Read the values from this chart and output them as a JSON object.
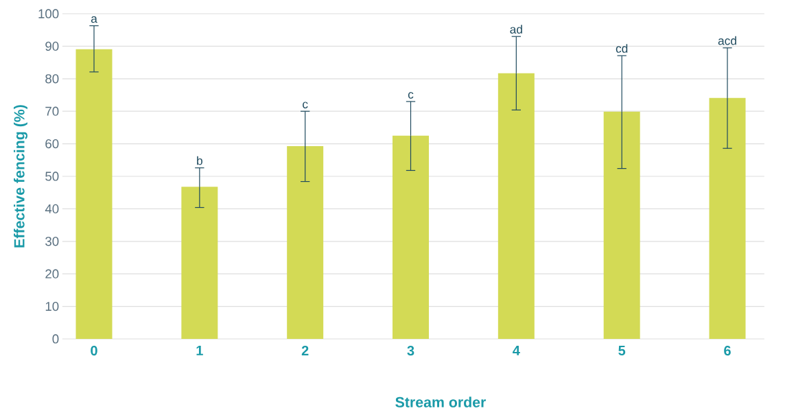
{
  "chart_data": {
    "type": "bar",
    "xlabel": "Stream order",
    "ylabel": "Effective fencing (%)",
    "categories": [
      "0",
      "1",
      "2",
      "3",
      "4",
      "5",
      "6"
    ],
    "values": [
      89.1,
      46.8,
      59.3,
      62.5,
      81.7,
      69.9,
      74.1
    ],
    "errors": [
      [
        82.1,
        96.3
      ],
      [
        40.4,
        52.6
      ],
      [
        48.4,
        70.0
      ],
      [
        51.8,
        73.0
      ],
      [
        70.4,
        93.0
      ],
      [
        52.4,
        87.1
      ],
      [
        58.6,
        89.5
      ]
    ],
    "color": "#d3da55",
    "ylim": [
      0,
      100
    ],
    "yticks": [
      0,
      10,
      20,
      30,
      40,
      50,
      60,
      70,
      80,
      90,
      100
    ],
    "grid": "y",
    "annotations": [
      {
        "text": "a",
        "x": "0",
        "y": 96.3
      },
      {
        "text": "b",
        "x": "1",
        "y": 52.6
      },
      {
        "text": "c",
        "x": "2",
        "y": 70.0
      },
      {
        "text": "c",
        "x": "3",
        "y": 73.0
      },
      {
        "text": "ad",
        "x": "4",
        "y": 93.0
      },
      {
        "text": "cd",
        "x": "5",
        "y": 87.1
      },
      {
        "text": "acd",
        "x": "6",
        "y": 89.5
      }
    ]
  }
}
